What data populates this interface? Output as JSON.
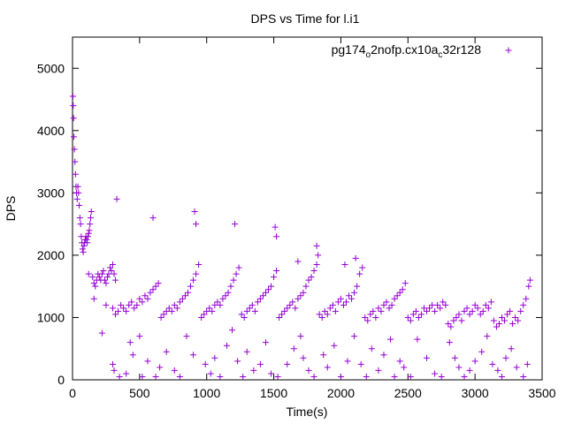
{
  "chart_data": {
    "type": "scatter",
    "title": "DPS vs Time for l.i1",
    "xlabel": "Time(s)",
    "ylabel": "DPS",
    "xlim": [
      0,
      3500
    ],
    "ylim": [
      0,
      5500
    ],
    "x_ticks": [
      "0",
      "500",
      "1000",
      "1500",
      "2000",
      "2500",
      "3000",
      "3500"
    ],
    "y_ticks": [
      "0",
      "1000",
      "2000",
      "3000",
      "4000",
      "5000"
    ],
    "grid": false,
    "legend_position": "top-right",
    "marker": "plus",
    "series": [
      {
        "name_parts": [
          "pg174",
          "o",
          "2nofp.cx10a",
          "c",
          "32r128"
        ],
        "color": "#9400d3",
        "points": [
          [
            3,
            4550
          ],
          [
            5,
            4400
          ],
          [
            8,
            4200
          ],
          [
            10,
            3900
          ],
          [
            14,
            3700
          ],
          [
            18,
            3500
          ],
          [
            22,
            3300
          ],
          [
            26,
            3100
          ],
          [
            30,
            3000
          ],
          [
            35,
            2900
          ],
          [
            40,
            3100
          ],
          [
            45,
            3000
          ],
          [
            50,
            2800
          ],
          [
            55,
            2600
          ],
          [
            60,
            2500
          ],
          [
            65,
            2300
          ],
          [
            70,
            2200
          ],
          [
            75,
            2100
          ],
          [
            80,
            2050
          ],
          [
            85,
            2150
          ],
          [
            90,
            2200
          ],
          [
            95,
            2250
          ],
          [
            100,
            2300
          ],
          [
            105,
            2250
          ],
          [
            110,
            2200
          ],
          [
            115,
            2300
          ],
          [
            120,
            2350
          ],
          [
            125,
            2400
          ],
          [
            130,
            2500
          ],
          [
            135,
            2600
          ],
          [
            140,
            2700
          ],
          [
            150,
            1650
          ],
          [
            160,
            1550
          ],
          [
            170,
            1500
          ],
          [
            180,
            1600
          ],
          [
            190,
            1700
          ],
          [
            200,
            1650
          ],
          [
            210,
            1600
          ],
          [
            220,
            1700
          ],
          [
            230,
            1750
          ],
          [
            240,
            1600
          ],
          [
            250,
            1550
          ],
          [
            260,
            1650
          ],
          [
            270,
            1700
          ],
          [
            280,
            1800
          ],
          [
            290,
            1750
          ],
          [
            300,
            1850
          ],
          [
            310,
            1700
          ],
          [
            320,
            1600
          ],
          [
            300,
            1150
          ],
          [
            320,
            1050
          ],
          [
            340,
            1100
          ],
          [
            360,
            1200
          ],
          [
            380,
            1150
          ],
          [
            400,
            1100
          ],
          [
            420,
            1200
          ],
          [
            440,
            1250
          ],
          [
            460,
            1150
          ],
          [
            480,
            1200
          ],
          [
            500,
            1300
          ],
          [
            520,
            1250
          ],
          [
            540,
            1350
          ],
          [
            560,
            1300
          ],
          [
            580,
            1400
          ],
          [
            600,
            1450
          ],
          [
            620,
            1500
          ],
          [
            640,
            1550
          ],
          [
            660,
            1000
          ],
          [
            680,
            1050
          ],
          [
            700,
            1100
          ],
          [
            720,
            1150
          ],
          [
            740,
            1100
          ],
          [
            760,
            1200
          ],
          [
            780,
            1150
          ],
          [
            800,
            1250
          ],
          [
            820,
            1300
          ],
          [
            840,
            1350
          ],
          [
            860,
            1400
          ],
          [
            880,
            1500
          ],
          [
            900,
            1600
          ],
          [
            920,
            1700
          ],
          [
            940,
            1850
          ],
          [
            960,
            1000
          ],
          [
            980,
            1050
          ],
          [
            1000,
            1100
          ],
          [
            1020,
            1150
          ],
          [
            1040,
            1100
          ],
          [
            1060,
            1200
          ],
          [
            1080,
            1250
          ],
          [
            1100,
            1200
          ],
          [
            1120,
            1300
          ],
          [
            1140,
            1350
          ],
          [
            1160,
            1400
          ],
          [
            1180,
            1500
          ],
          [
            1200,
            1600
          ],
          [
            1220,
            1700
          ],
          [
            1240,
            1800
          ],
          [
            1260,
            1050
          ],
          [
            1280,
            1000
          ],
          [
            1300,
            1100
          ],
          [
            1320,
            1150
          ],
          [
            1340,
            1200
          ],
          [
            1360,
            1100
          ],
          [
            1380,
            1250
          ],
          [
            1400,
            1300
          ],
          [
            1420,
            1350
          ],
          [
            1440,
            1400
          ],
          [
            1460,
            1450
          ],
          [
            1480,
            1500
          ],
          [
            1500,
            1650
          ],
          [
            1520,
            1750
          ],
          [
            1540,
            1000
          ],
          [
            1560,
            1050
          ],
          [
            1580,
            1100
          ],
          [
            1600,
            1150
          ],
          [
            1620,
            1200
          ],
          [
            1640,
            1250
          ],
          [
            1660,
            1150
          ],
          [
            1680,
            1300
          ],
          [
            1700,
            1350
          ],
          [
            1720,
            1400
          ],
          [
            1740,
            1500
          ],
          [
            1760,
            1600
          ],
          [
            1780,
            1650
          ],
          [
            1800,
            1750
          ],
          [
            1820,
            1850
          ],
          [
            1840,
            1050
          ],
          [
            1860,
            1000
          ],
          [
            1880,
            1100
          ],
          [
            1900,
            1050
          ],
          [
            1920,
            1150
          ],
          [
            1940,
            1200
          ],
          [
            1960,
            1100
          ],
          [
            1980,
            1250
          ],
          [
            2000,
            1300
          ],
          [
            2020,
            1200
          ],
          [
            2040,
            1250
          ],
          [
            2060,
            1350
          ],
          [
            2080,
            1300
          ],
          [
            2100,
            1400
          ],
          [
            2120,
            1500
          ],
          [
            2140,
            1700
          ],
          [
            2160,
            1800
          ],
          [
            2180,
            1000
          ],
          [
            2200,
            950
          ],
          [
            2220,
            1050
          ],
          [
            2240,
            1100
          ],
          [
            2260,
            1000
          ],
          [
            2280,
            1150
          ],
          [
            2300,
            1100
          ],
          [
            2320,
            1200
          ],
          [
            2340,
            1250
          ],
          [
            2360,
            1150
          ],
          [
            2380,
            1200
          ],
          [
            2400,
            1300
          ],
          [
            2420,
            1350
          ],
          [
            2440,
            1400
          ],
          [
            2460,
            1450
          ],
          [
            2480,
            1550
          ],
          [
            2500,
            1000
          ],
          [
            2520,
            950
          ],
          [
            2540,
            1050
          ],
          [
            2560,
            1100
          ],
          [
            2580,
            1000
          ],
          [
            2600,
            1050
          ],
          [
            2620,
            1150
          ],
          [
            2640,
            1100
          ],
          [
            2660,
            1150
          ],
          [
            2680,
            1200
          ],
          [
            2700,
            1100
          ],
          [
            2720,
            1200
          ],
          [
            2740,
            1150
          ],
          [
            2760,
            1250
          ],
          [
            2780,
            1200
          ],
          [
            2800,
            900
          ],
          [
            2820,
            850
          ],
          [
            2840,
            950
          ],
          [
            2860,
            1000
          ],
          [
            2880,
            1050
          ],
          [
            2900,
            950
          ],
          [
            2920,
            1100
          ],
          [
            2940,
            1150
          ],
          [
            2960,
            1050
          ],
          [
            2980,
            1100
          ],
          [
            3000,
            1200
          ],
          [
            3020,
            1150
          ],
          [
            3040,
            1050
          ],
          [
            3060,
            1100
          ],
          [
            3080,
            1200
          ],
          [
            3100,
            1150
          ],
          [
            3120,
            1250
          ],
          [
            3140,
            950
          ],
          [
            3160,
            850
          ],
          [
            3180,
            900
          ],
          [
            3200,
            1000
          ],
          [
            3220,
            950
          ],
          [
            3240,
            1050
          ],
          [
            3260,
            1100
          ],
          [
            3280,
            900
          ],
          [
            3300,
            1000
          ],
          [
            3320,
            950
          ],
          [
            3340,
            1100
          ],
          [
            3360,
            1200
          ],
          [
            3380,
            1300
          ],
          [
            3400,
            1500
          ],
          [
            3410,
            1600
          ],
          [
            120,
            1700
          ],
          [
            160,
            1300
          ],
          [
            250,
            1200
          ],
          [
            330,
            2900
          ],
          [
            600,
            2600
          ],
          [
            910,
            2700
          ],
          [
            920,
            2500
          ],
          [
            1210,
            2500
          ],
          [
            1510,
            2450
          ],
          [
            1520,
            2300
          ],
          [
            1820,
            2150
          ],
          [
            1830,
            2000
          ],
          [
            1680,
            1900
          ],
          [
            2110,
            1950
          ],
          [
            2030,
            1850
          ],
          [
            220,
            750
          ],
          [
            300,
            250
          ],
          [
            310,
            150
          ],
          [
            350,
            50
          ],
          [
            400,
            100
          ],
          [
            430,
            600
          ],
          [
            450,
            400
          ],
          [
            500,
            700
          ],
          [
            520,
            50
          ],
          [
            560,
            300
          ],
          [
            620,
            50
          ],
          [
            650,
            200
          ],
          [
            700,
            450
          ],
          [
            760,
            150
          ],
          [
            800,
            50
          ],
          [
            850,
            700
          ],
          [
            900,
            400
          ],
          [
            990,
            250
          ],
          [
            1030,
            100
          ],
          [
            1060,
            350
          ],
          [
            1100,
            50
          ],
          [
            1150,
            550
          ],
          [
            1190,
            800
          ],
          [
            1230,
            300
          ],
          [
            1270,
            50
          ],
          [
            1300,
            450
          ],
          [
            1350,
            150
          ],
          [
            1400,
            250
          ],
          [
            1440,
            600
          ],
          [
            1480,
            100
          ],
          [
            1530,
            50
          ],
          [
            1600,
            250
          ],
          [
            1650,
            500
          ],
          [
            1700,
            700
          ],
          [
            1720,
            350
          ],
          [
            1760,
            150
          ],
          [
            1800,
            50
          ],
          [
            1870,
            400
          ],
          [
            1900,
            200
          ],
          [
            1950,
            550
          ],
          [
            2000,
            50
          ],
          [
            2050,
            300
          ],
          [
            2100,
            700
          ],
          [
            2150,
            250
          ],
          [
            2190,
            50
          ],
          [
            2230,
            500
          ],
          [
            2280,
            150
          ],
          [
            2320,
            400
          ],
          [
            2370,
            650
          ],
          [
            2400,
            50
          ],
          [
            2440,
            300
          ],
          [
            2470,
            200
          ],
          [
            2520,
            50
          ],
          [
            2570,
            650
          ],
          [
            2640,
            350
          ],
          [
            2700,
            100
          ],
          [
            2750,
            50
          ],
          [
            2810,
            600
          ],
          [
            2850,
            350
          ],
          [
            2880,
            200
          ],
          [
            2920,
            50
          ],
          [
            2960,
            150
          ],
          [
            3000,
            300
          ],
          [
            3050,
            450
          ],
          [
            3090,
            700
          ],
          [
            3130,
            250
          ],
          [
            3170,
            150
          ],
          [
            3200,
            50
          ],
          [
            3230,
            350
          ],
          [
            3270,
            500
          ],
          [
            3310,
            200
          ],
          [
            3360,
            50
          ],
          [
            3390,
            250
          ]
        ]
      }
    ]
  }
}
